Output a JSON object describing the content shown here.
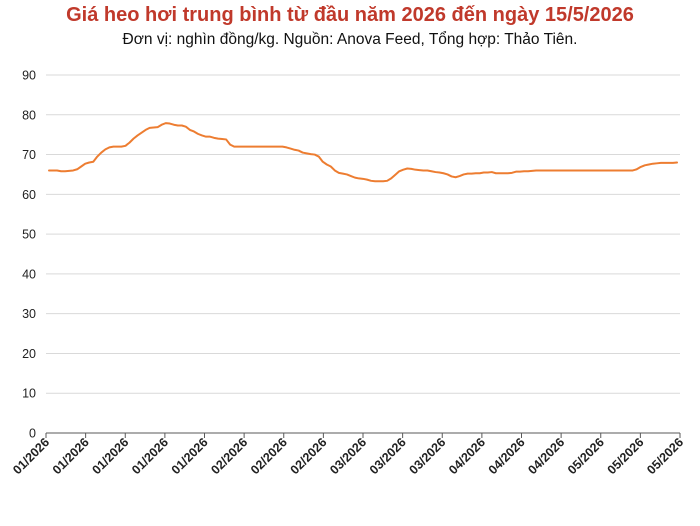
{
  "chart_data": {
    "type": "line",
    "title": "Giá heo hơi trung bình từ đầu năm 2026 đến ngày 15/5/2026",
    "subtitle": "Đơn vị: nghìn đồng/kg. Nguồn: Anova Feed, Tổng hợp: Thảo Tiên.",
    "xlabel": "",
    "ylabel": "",
    "ylim": [
      0,
      90
    ],
    "yticks": [
      0,
      10,
      20,
      30,
      40,
      50,
      60,
      70,
      80,
      90
    ],
    "xtick_labels": [
      "01/2026",
      "01/2026",
      "01/2026",
      "01/2026",
      "01/2026",
      "02/2026",
      "02/2026",
      "02/2026",
      "03/2026",
      "03/2026",
      "03/2026",
      "04/2026",
      "04/2026",
      "04/2026",
      "05/2026",
      "05/2026",
      "05/2026"
    ],
    "grid": "horizontal",
    "legend": "none",
    "colors": {
      "line": "#ED7D31",
      "grid": "#d9d9d9",
      "axis": "#595959",
      "title": "#c0392b"
    },
    "series": [
      {
        "values": [
          66,
          66,
          66,
          65.8,
          65.8,
          65.9,
          66,
          66.3,
          67,
          67.7,
          68,
          68.2,
          69.5,
          70.5,
          71.3,
          71.8,
          72,
          72,
          72,
          72.2,
          73,
          74,
          74.8,
          75.5,
          76.2,
          76.7,
          76.8,
          76.9,
          77.5,
          77.9,
          77.8,
          77.5,
          77.3,
          77.3,
          77,
          76.2,
          75.8,
          75.2,
          74.8,
          74.5,
          74.5,
          74.2,
          74,
          73.9,
          73.8,
          72.5,
          72,
          72,
          72,
          72,
          72,
          72,
          72,
          72,
          72,
          72,
          72,
          72,
          72,
          71.8,
          71.5,
          71.2,
          71,
          70.5,
          70.3,
          70.1,
          70,
          69.5,
          68.2,
          67.5,
          67,
          66,
          65.4,
          65.2,
          65,
          64.6,
          64.2,
          64,
          63.9,
          63.7,
          63.4,
          63.3,
          63.3,
          63.3,
          63.4,
          64,
          64.9,
          65.8,
          66.2,
          66.5,
          66.4,
          66.2,
          66.1,
          66,
          66,
          65.8,
          65.6,
          65.5,
          65.3,
          65,
          64.5,
          64.3,
          64.6,
          65,
          65.2,
          65.2,
          65.3,
          65.3,
          65.5,
          65.5,
          65.6,
          65.3,
          65.3,
          65.3,
          65.3,
          65.4,
          65.7,
          65.7,
          65.8,
          65.8,
          65.9,
          66,
          66,
          66,
          66,
          66,
          66,
          66,
          66,
          66,
          66,
          66,
          66,
          66,
          66,
          66,
          66,
          66,
          66,
          66,
          66,
          66,
          66,
          66,
          66,
          66,
          66.3,
          66.9,
          67.3,
          67.5,
          67.7,
          67.8,
          67.9,
          67.9,
          67.9,
          67.9,
          68
        ]
      }
    ]
  }
}
